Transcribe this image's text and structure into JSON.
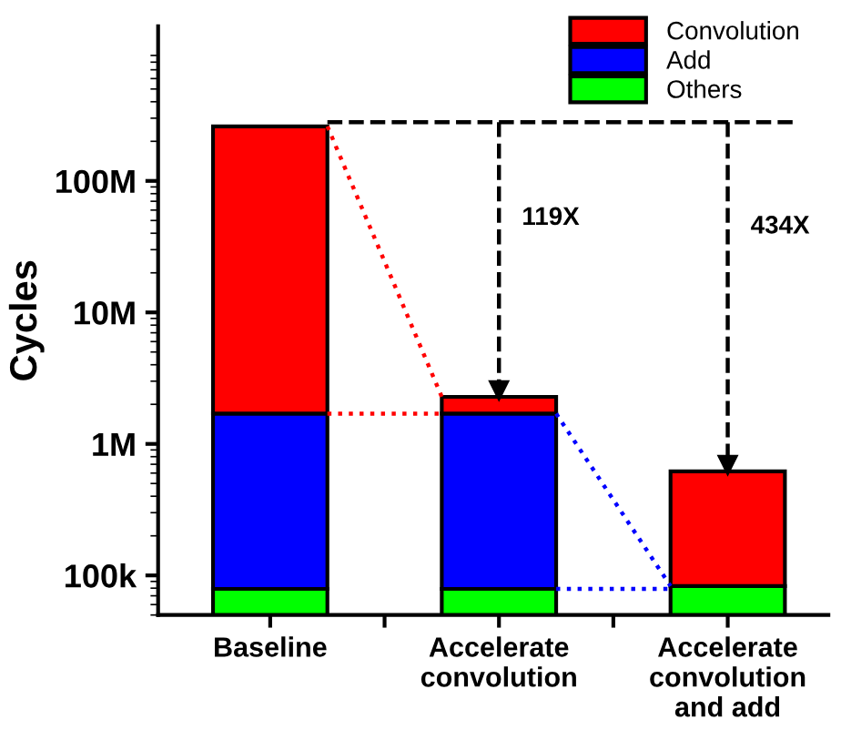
{
  "chart_data": {
    "type": "bar",
    "stacked": true,
    "log": true,
    "ylabel": "Cycles",
    "categories": [
      "Baseline",
      "Accelerate\nconvolution",
      "Accelerate\nconvolution\nand add"
    ],
    "series": [
      {
        "name": "Others",
        "color": "#00ff00",
        "values": [
          79000,
          79000,
          83000
        ]
      },
      {
        "name": "Add",
        "color": "#0000ff",
        "values": [
          1621000,
          1621000,
          null
        ]
      },
      {
        "name": "Convolution",
        "color": "#ff0000",
        "values": [
          258300000,
          580000,
          535000
        ]
      }
    ],
    "ylim": [
      50000,
      1500000000
    ],
    "yticks": [
      {
        "value": 100000,
        "label": "100k"
      },
      {
        "value": 1000000,
        "label": "1M"
      },
      {
        "value": 10000000,
        "label": "10M"
      },
      {
        "value": 100000000,
        "label": "100M"
      }
    ],
    "annotations": [
      "119X",
      "434X"
    ],
    "ref_lines": [
      {
        "axis": "y",
        "value": 280000000,
        "color": "#000000",
        "line_style": "dashed"
      }
    ],
    "grid": false,
    "legend": "top right"
  }
}
